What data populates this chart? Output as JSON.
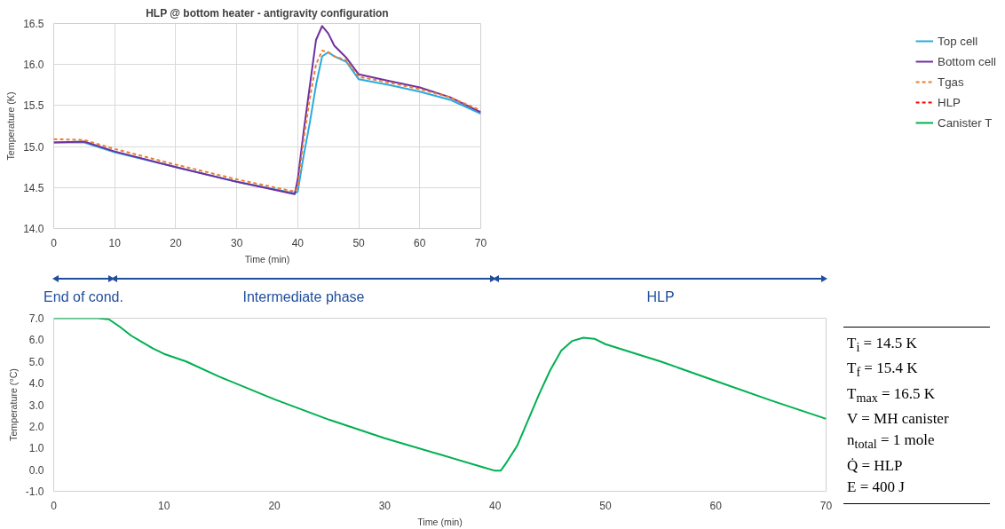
{
  "chart_data": [
    {
      "type": "line",
      "title": "HLP @ bottom heater - antigravity configuration",
      "xlabel": "Time (min)",
      "ylabel": "Temperature (K)",
      "x": [
        0,
        5,
        10,
        20,
        30,
        39.5,
        40,
        41,
        42,
        43,
        44,
        45,
        46,
        48,
        50,
        55,
        60,
        65,
        70
      ],
      "series": [
        {
          "name": "Top cell",
          "color": "#29aae1",
          "values": [
            15.05,
            15.05,
            14.93,
            14.75,
            14.57,
            14.43,
            14.45,
            14.9,
            15.3,
            15.75,
            16.1,
            16.15,
            16.1,
            16.03,
            15.82,
            15.75,
            15.67,
            15.57,
            15.4
          ]
        },
        {
          "name": "Bottom cell",
          "color": "#7030a0",
          "values": [
            15.05,
            15.06,
            14.94,
            14.75,
            14.57,
            14.42,
            14.6,
            15.2,
            15.75,
            16.3,
            16.47,
            16.38,
            16.23,
            16.08,
            15.88,
            15.8,
            15.72,
            15.6,
            15.42
          ]
        },
        {
          "name": "Tgas",
          "color": "#ed7d31",
          "line_style": "dashed",
          "values": [
            15.09,
            15.08,
            14.97,
            14.78,
            14.6,
            14.45,
            14.5,
            15.1,
            15.6,
            16.0,
            16.17,
            16.15,
            16.1,
            16.05,
            15.85,
            15.78,
            15.7,
            15.6,
            15.44
          ]
        },
        {
          "name": "HLP",
          "color": "#ff0000",
          "line_style": "dashed",
          "values": [
            null,
            null,
            null,
            null,
            null,
            null,
            null,
            null,
            null,
            null,
            null,
            null,
            null,
            null,
            null,
            null,
            null,
            null,
            null
          ]
        },
        {
          "name": "Canister T",
          "color": "#00b050",
          "values": [
            null,
            null,
            null,
            null,
            null,
            null,
            null,
            null,
            null,
            null,
            null,
            null,
            null,
            null,
            null,
            null,
            null,
            null,
            null
          ]
        }
      ],
      "xlim": [
        0,
        70
      ],
      "xticks": [
        0,
        10,
        20,
        30,
        40,
        50,
        60,
        70
      ],
      "ylim": [
        14,
        16.5
      ],
      "yticks": [
        {
          "value": 14,
          "label": "14.0"
        },
        {
          "value": 14.5,
          "label": "14.5"
        },
        {
          "value": 15,
          "label": "15.0"
        },
        {
          "value": 15.5,
          "label": "15.5"
        },
        {
          "value": 16,
          "label": "16.0"
        },
        {
          "value": 16.5,
          "label": "16.5"
        }
      ],
      "grid": true,
      "legend": "right"
    },
    {
      "type": "line",
      "xlabel": "Time (min)",
      "ylabel": "Temperature (°C)",
      "x": [
        0,
        4,
        5,
        6,
        7,
        8,
        9,
        10,
        12,
        15,
        20,
        25,
        30,
        35,
        39,
        40,
        40.5,
        41,
        42,
        43,
        44,
        45,
        46,
        47,
        48,
        49,
        50,
        55,
        60,
        65,
        70
      ],
      "series": [
        {
          "color": "#00b050",
          "values": [
            7.0,
            7.0,
            6.95,
            6.6,
            6.2,
            5.9,
            5.6,
            5.35,
            5.0,
            4.3,
            3.25,
            2.3,
            1.45,
            0.7,
            0.1,
            -0.05,
            -0.05,
            0.3,
            1.1,
            2.3,
            3.5,
            4.6,
            5.5,
            5.95,
            6.1,
            6.05,
            5.8,
            5.0,
            4.1,
            3.2,
            2.35
          ]
        }
      ],
      "xlim": [
        0,
        70
      ],
      "xticks": [
        0,
        10,
        20,
        30,
        40,
        50,
        60,
        70
      ],
      "ylim": [
        -1,
        7
      ],
      "yticks": [
        {
          "value": -1,
          "label": "-1.0"
        },
        {
          "value": 0,
          "label": "0.0"
        },
        {
          "value": 1,
          "label": "1.0"
        },
        {
          "value": 2,
          "label": "2.0"
        },
        {
          "value": 3,
          "label": "3.0"
        },
        {
          "value": 4,
          "label": "4.0"
        },
        {
          "value": 5,
          "label": "5.0"
        },
        {
          "value": 6,
          "label": "6.0"
        },
        {
          "value": 7,
          "label": "7.0"
        }
      ],
      "annotations": [
        "End of cond.",
        "Intermediate phase",
        "HLP"
      ]
    },
    {
      "type": "other",
      "annotations": [
        "T$_{i}$ = 14.5 K",
        "T$_{f}$ = 15.4 K",
        "T$_{max}$ = 16.5 K",
        "V = MH canister",
        "n$_{total}$ = 1 mole",
        "Q̇ = HLP",
        "E = 400 J"
      ]
    }
  ]
}
